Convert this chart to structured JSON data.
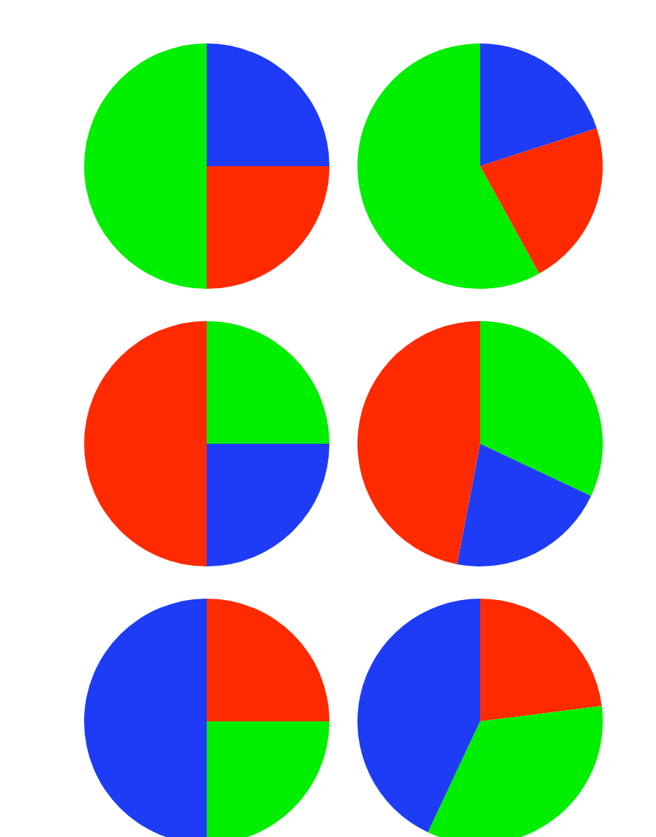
{
  "chart_data": [
    {
      "type": "pie",
      "categories": [
        null,
        null,
        null
      ],
      "values": [
        25,
        25,
        50
      ],
      "colors": [
        "#1e3cf5",
        "#ff2a00",
        "#00ee00"
      ]
    },
    {
      "type": "pie",
      "categories": [
        null,
        null,
        null
      ],
      "values": [
        20,
        22,
        58
      ],
      "colors": [
        "#1e3cf5",
        "#ff2a00",
        "#00ee00"
      ]
    },
    {
      "type": "pie",
      "categories": [
        null,
        null,
        null
      ],
      "values": [
        25,
        25,
        50
      ],
      "colors": [
        "#00ee00",
        "#1e3cf5",
        "#ff2a00"
      ]
    },
    {
      "type": "pie",
      "categories": [
        null,
        null,
        null
      ],
      "values": [
        32,
        21,
        47
      ],
      "colors": [
        "#00ee00",
        "#1e3cf5",
        "#ff2a00"
      ]
    },
    {
      "type": "pie",
      "categories": [
        null,
        null,
        null
      ],
      "values": [
        25,
        25,
        50
      ],
      "colors": [
        "#ff2a00",
        "#00ee00",
        "#1e3cf5"
      ]
    },
    {
      "type": "pie",
      "categories": [
        null,
        null,
        null
      ],
      "values": [
        23,
        34,
        43
      ],
      "colors": [
        "#ff2a00",
        "#00ee00",
        "#1e3cf5"
      ]
    }
  ]
}
